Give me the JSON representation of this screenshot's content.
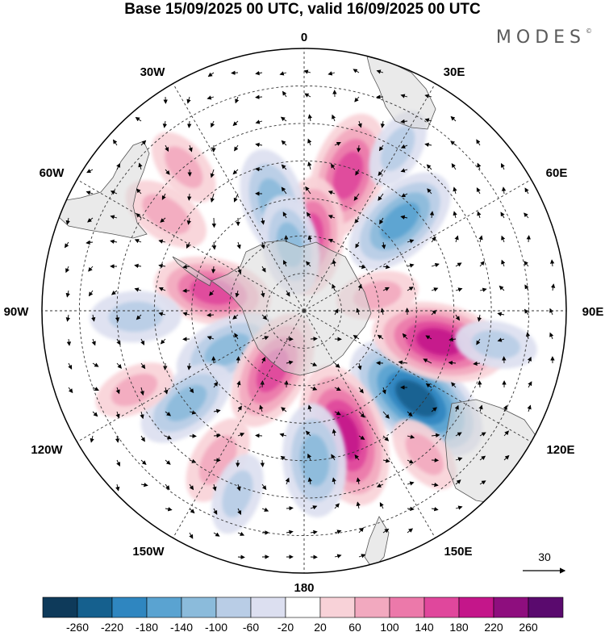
{
  "title": "Base 15/09/2025 00 UTC, valid 16/09/2025 00 UTC",
  "logo": "MODES",
  "logo_mark": "©",
  "map": {
    "projection": "south polar stereographic",
    "field": "geopotential height anomaly with wind vectors",
    "longitude_labels": {
      "lon_0": "0",
      "lon_30e": "30E",
      "lon_60e": "60E",
      "lon_90e": "90E",
      "lon_120e": "120E",
      "lon_150e": "150E",
      "lon_180": "180",
      "lon_150w": "150W",
      "lon_120w": "120W",
      "lon_90w": "90W",
      "lon_60w": "60W",
      "lon_30w": "30W"
    },
    "reference_vector": {
      "value": "30"
    }
  },
  "colorbar": {
    "levels": [
      "-260",
      "-220",
      "-180",
      "-140",
      "-100",
      "-60",
      "-20",
      "20",
      "60",
      "100",
      "140",
      "180",
      "220",
      "260"
    ],
    "colors": [
      "#0e3a5a",
      "#15608e",
      "#2f86c0",
      "#5aa3d1",
      "#8bbbdb",
      "#b9cde6",
      "#dcdff0",
      "#ffffff",
      "#f8d2d8",
      "#f2a9bf",
      "#ec79aa",
      "#e0479c",
      "#c4168a",
      "#8e0e7e",
      "#5a0a6e"
    ]
  },
  "anomalies": [
    {
      "sign": "neg",
      "value": -220,
      "lon": 128,
      "lat": -52
    },
    {
      "sign": "pos",
      "value": 180,
      "lon": 103,
      "lat": -53
    },
    {
      "sign": "pos",
      "value": 200,
      "lon": 162,
      "lat": -55
    },
    {
      "sign": "pos",
      "value": 160,
      "lon": 18,
      "lat": -52
    },
    {
      "sign": "neg",
      "value": -150,
      "lon": 47,
      "lat": -55
    },
    {
      "sign": "pos",
      "value": 140,
      "lon": 5,
      "lat": -70
    },
    {
      "sign": "neg",
      "value": -120,
      "lon": -16,
      "lat": -60
    },
    {
      "sign": "neg",
      "value": -100,
      "lon": -12,
      "lat": -72
    },
    {
      "sign": "pos",
      "value": 140,
      "lon": -78,
      "lat": -65
    },
    {
      "sign": "neg",
      "value": -120,
      "lon": -117,
      "lat": -67
    },
    {
      "sign": "pos",
      "value": 150,
      "lon": -152,
      "lat": -72
    },
    {
      "sign": "neg",
      "value": -110,
      "lon": -128,
      "lat": -50
    },
    {
      "sign": "neg",
      "value": -130,
      "lon": 176,
      "lat": -50
    },
    {
      "sign": "neg",
      "value": -80,
      "lon": -92,
      "lat": -45
    },
    {
      "sign": "pos",
      "value": 80,
      "lon": -55,
      "lat": -45
    },
    {
      "sign": "pos",
      "value": 60,
      "lon": -115,
      "lat": -40
    },
    {
      "sign": "pos",
      "value": 80,
      "lon": -150,
      "lat": -44
    },
    {
      "sign": "neg",
      "value": -60,
      "lon": -160,
      "lat": -38
    },
    {
      "sign": "pos",
      "value": 60,
      "lon": 78,
      "lat": -70
    },
    {
      "sign": "pos",
      "value": 60,
      "lon": 140,
      "lat": -40
    },
    {
      "sign": "neg",
      "value": -60,
      "lon": 100,
      "lat": -38
    },
    {
      "sign": "neg",
      "value": -60,
      "lon": 30,
      "lat": -40
    },
    {
      "sign": "pos",
      "value": 60,
      "lon": -40,
      "lat": -40
    }
  ]
}
